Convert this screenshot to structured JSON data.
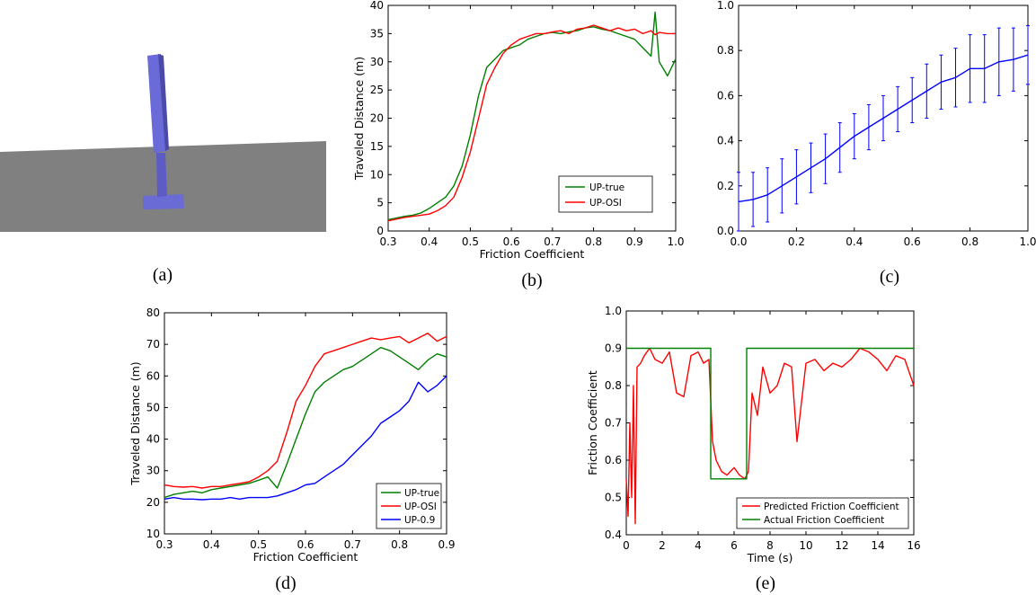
{
  "captions": {
    "a": "(a)",
    "b": "(b)",
    "c": "(c)",
    "d": "(d)",
    "e": "(e)"
  },
  "chart_data": [
    {
      "id": "b",
      "type": "line",
      "xlabel": "Friction Coefficient",
      "ylabel": "Traveled Distance (m)",
      "xlim": [
        0.3,
        1.0
      ],
      "ylim": [
        0,
        40
      ],
      "xticks": [
        "0.3",
        "0.4",
        "0.5",
        "0.6",
        "0.7",
        "0.8",
        "0.9",
        "1.0"
      ],
      "yticks": [
        "0",
        "5",
        "10",
        "15",
        "20",
        "25",
        "30",
        "35",
        "40"
      ],
      "grid": false,
      "legend": "lower-right",
      "x": [
        0.3,
        0.32,
        0.34,
        0.36,
        0.38,
        0.4,
        0.42,
        0.44,
        0.46,
        0.48,
        0.5,
        0.52,
        0.54,
        0.56,
        0.58,
        0.6,
        0.62,
        0.64,
        0.66,
        0.68,
        0.7,
        0.72,
        0.74,
        0.76,
        0.78,
        0.8,
        0.82,
        0.84,
        0.86,
        0.88,
        0.9,
        0.92,
        0.94,
        0.95,
        0.96,
        0.98,
        1.0
      ],
      "series": [
        {
          "name": "UP-true",
          "color": "#008000",
          "values": [
            2.0,
            2.3,
            2.6,
            2.8,
            3.2,
            4.0,
            5.0,
            6.0,
            8.0,
            11.5,
            17.0,
            24.0,
            29.0,
            30.5,
            32.0,
            32.5,
            33.0,
            34.0,
            34.5,
            35.0,
            35.2,
            35.0,
            35.3,
            35.5,
            36.0,
            36.2,
            35.8,
            35.5,
            35.0,
            34.5,
            34.0,
            32.5,
            31.0,
            38.8,
            30.0,
            27.5,
            30.5
          ]
        },
        {
          "name": "UP-OSI",
          "color": "#ff0000",
          "values": [
            1.8,
            2.1,
            2.4,
            2.6,
            2.8,
            3.0,
            3.6,
            4.5,
            6.0,
            9.5,
            14.0,
            20.0,
            26.0,
            29.0,
            31.5,
            33.0,
            34.0,
            34.5,
            35.0,
            35.0,
            35.3,
            35.5,
            35.0,
            35.8,
            36.0,
            36.5,
            36.0,
            35.5,
            36.0,
            35.5,
            35.8,
            35.0,
            35.5,
            34.8,
            35.2,
            35.0,
            35.0
          ]
        }
      ]
    },
    {
      "id": "c",
      "type": "line",
      "xlim": [
        0.0,
        1.0
      ],
      "ylim": [
        0.0,
        1.0
      ],
      "xticks": [
        "0.0",
        "0.2",
        "0.4",
        "0.6",
        "0.8",
        "1.0"
      ],
      "yticks": [
        "0.0",
        "0.2",
        "0.4",
        "0.6",
        "0.8",
        "1.0"
      ],
      "grid": false,
      "error_bars": true,
      "series": [
        {
          "color": "#0000ff",
          "x": [
            0.0,
            0.05,
            0.1,
            0.15,
            0.2,
            0.25,
            0.3,
            0.35,
            0.4,
            0.45,
            0.5,
            0.55,
            0.6,
            0.65,
            0.7,
            0.75,
            0.8,
            0.85,
            0.9,
            0.95,
            1.0
          ],
          "values": [
            0.13,
            0.14,
            0.16,
            0.2,
            0.24,
            0.28,
            0.32,
            0.37,
            0.42,
            0.46,
            0.5,
            0.54,
            0.58,
            0.62,
            0.66,
            0.68,
            0.72,
            0.72,
            0.75,
            0.76,
            0.78
          ],
          "error": [
            0.13,
            0.12,
            0.12,
            0.12,
            0.12,
            0.11,
            0.11,
            0.11,
            0.1,
            0.1,
            0.1,
            0.1,
            0.1,
            0.12,
            0.12,
            0.13,
            0.15,
            0.15,
            0.15,
            0.14,
            0.13
          ]
        }
      ]
    },
    {
      "id": "d",
      "type": "line",
      "xlabel": "Friction Coefficient",
      "ylabel": "Traveled Distance (m)",
      "xlim": [
        0.3,
        0.9
      ],
      "ylim": [
        10,
        80
      ],
      "xticks": [
        "0.3",
        "0.4",
        "0.5",
        "0.6",
        "0.7",
        "0.8",
        "0.9"
      ],
      "yticks": [
        "10",
        "20",
        "30",
        "40",
        "50",
        "60",
        "70",
        "80"
      ],
      "grid": false,
      "legend": "lower-right",
      "x": [
        0.3,
        0.32,
        0.34,
        0.36,
        0.38,
        0.4,
        0.42,
        0.44,
        0.46,
        0.48,
        0.5,
        0.52,
        0.54,
        0.56,
        0.58,
        0.6,
        0.62,
        0.64,
        0.66,
        0.68,
        0.7,
        0.72,
        0.74,
        0.76,
        0.78,
        0.8,
        0.82,
        0.84,
        0.86,
        0.88,
        0.9
      ],
      "series": [
        {
          "name": "UP-true",
          "color": "#008000",
          "values": [
            21.5,
            22.5,
            23.0,
            23.5,
            23.0,
            24.0,
            24.5,
            25.0,
            25.5,
            26.0,
            27.0,
            28.0,
            24.5,
            32.0,
            40.0,
            48.0,
            55.0,
            58.0,
            60.0,
            62.0,
            63.0,
            65.0,
            67.0,
            69.0,
            68.0,
            66.0,
            64.0,
            62.0,
            65.0,
            67.0,
            66.0
          ]
        },
        {
          "name": "UP-OSI",
          "color": "#ff0000",
          "values": [
            25.5,
            25.0,
            24.8,
            25.0,
            24.5,
            25.0,
            25.0,
            25.5,
            26.0,
            26.5,
            28.0,
            30.0,
            33.0,
            42.0,
            52.0,
            57.0,
            63.0,
            67.0,
            68.0,
            69.0,
            70.0,
            71.0,
            72.0,
            71.5,
            72.0,
            72.5,
            70.5,
            72.0,
            73.5,
            71.0,
            72.5
          ]
        },
        {
          "name": "UP-0.9",
          "color": "#0000ff",
          "values": [
            21.0,
            21.5,
            21.0,
            21.0,
            20.8,
            21.0,
            21.0,
            21.5,
            21.0,
            21.5,
            21.5,
            21.5,
            22.0,
            23.0,
            24.0,
            25.5,
            26.0,
            28.0,
            30.0,
            32.0,
            35.0,
            38.0,
            41.0,
            45.0,
            47.0,
            49.0,
            52.0,
            58.0,
            55.0,
            57.0,
            60.0
          ]
        }
      ]
    },
    {
      "id": "e",
      "type": "line",
      "xlabel": "Time (s)",
      "ylabel": "Friction Coefficient",
      "xlim": [
        0,
        16
      ],
      "ylim": [
        0.4,
        1.0
      ],
      "xticks": [
        "0",
        "2",
        "4",
        "6",
        "8",
        "10",
        "12",
        "14",
        "16"
      ],
      "yticks": [
        "0.4",
        "0.5",
        "0.6",
        "0.7",
        "0.8",
        "0.9",
        "1.0"
      ],
      "grid": false,
      "legend": "lower-right",
      "series": [
        {
          "name": "Predicted Friction Coefficient",
          "color": "#ff0000",
          "x": [
            0.0,
            0.1,
            0.2,
            0.3,
            0.4,
            0.5,
            0.6,
            0.8,
            1.0,
            1.3,
            1.6,
            2.0,
            2.4,
            2.8,
            3.2,
            3.6,
            4.0,
            4.3,
            4.6,
            4.8,
            5.0,
            5.3,
            5.6,
            6.0,
            6.3,
            6.6,
            6.8,
            7.0,
            7.3,
            7.6,
            8.0,
            8.4,
            8.8,
            9.2,
            9.5,
            10.0,
            10.5,
            11.0,
            11.5,
            12.0,
            12.5,
            13.0,
            13.5,
            14.0,
            14.5,
            15.0,
            15.5,
            16.0
          ],
          "values": [
            0.55,
            0.45,
            0.7,
            0.5,
            0.8,
            0.43,
            0.85,
            0.86,
            0.88,
            0.9,
            0.87,
            0.86,
            0.89,
            0.78,
            0.77,
            0.88,
            0.89,
            0.86,
            0.87,
            0.65,
            0.6,
            0.57,
            0.56,
            0.58,
            0.56,
            0.55,
            0.57,
            0.78,
            0.72,
            0.85,
            0.78,
            0.8,
            0.86,
            0.85,
            0.65,
            0.86,
            0.87,
            0.84,
            0.86,
            0.85,
            0.87,
            0.9,
            0.89,
            0.87,
            0.84,
            0.88,
            0.87,
            0.8
          ]
        },
        {
          "name": "Actual Friction Coefficient",
          "color": "#008000",
          "x": [
            0.0,
            4.7,
            4.7,
            6.7,
            6.7,
            16.0
          ],
          "values": [
            0.9,
            0.9,
            0.55,
            0.55,
            0.9,
            0.9
          ]
        }
      ]
    }
  ]
}
